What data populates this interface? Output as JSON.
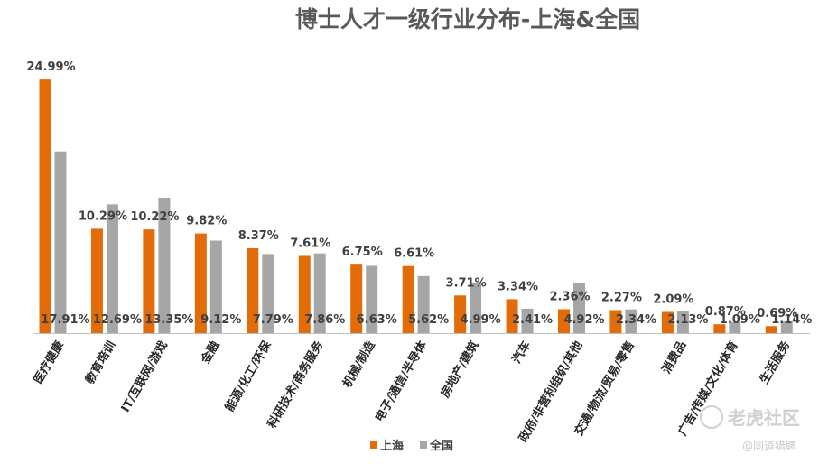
{
  "chart_data": {
    "type": "bar",
    "title": "博士人才一级行业分布-上海&全国",
    "categories": [
      "医疗健康",
      "教育培训",
      "IT/互联网/游戏",
      "金融",
      "能源/化工/环保",
      "科研技术/商务服务",
      "机械/制造",
      "电子/通信/半导体",
      "房地产/建筑",
      "汽车",
      "政府/非营利组织/其他",
      "交通/物流/贸易/零售",
      "消费品",
      "广告/传媒/文化/体育",
      "生活服务"
    ],
    "series": [
      {
        "name": "上海",
        "color": "#E36C09",
        "values": [
          24.99,
          10.29,
          10.22,
          9.82,
          8.37,
          7.61,
          6.75,
          6.61,
          3.71,
          3.34,
          2.36,
          2.27,
          2.09,
          0.87,
          0.69
        ]
      },
      {
        "name": "全国",
        "color": "#A6A6A6",
        "values": [
          17.91,
          12.69,
          13.35,
          9.12,
          7.79,
          7.86,
          6.63,
          5.62,
          4.99,
          2.41,
          4.92,
          2.34,
          2.13,
          1.09,
          1.14
        ]
      }
    ],
    "value_labels": {
      "上海": [
        "24.99%",
        "10.29%",
        "10.22%",
        "9.82%",
        "8.37%",
        "7.61%",
        "6.75%",
        "6.61%",
        "3.71%",
        "3.34%",
        "2.36%",
        "2.27%",
        "2.09%",
        "0.87%",
        "0.69%"
      ],
      "全国": [
        "17.91%",
        "12.69%",
        "13.35%",
        "9.12%",
        "7.79%",
        "7.86%",
        "6.63%",
        "5.62%",
        "4.99%",
        "2.41%",
        "4.92%",
        "2.34%",
        "2.13%",
        "1.09%",
        "1.14%"
      ]
    },
    "ylim": [
      0,
      25
    ],
    "xlabel": "",
    "ylabel": "",
    "grid": false,
    "legend": "bottom"
  },
  "watermark": {
    "brand": "老虎社区",
    "handle": "@同道猎聘"
  }
}
